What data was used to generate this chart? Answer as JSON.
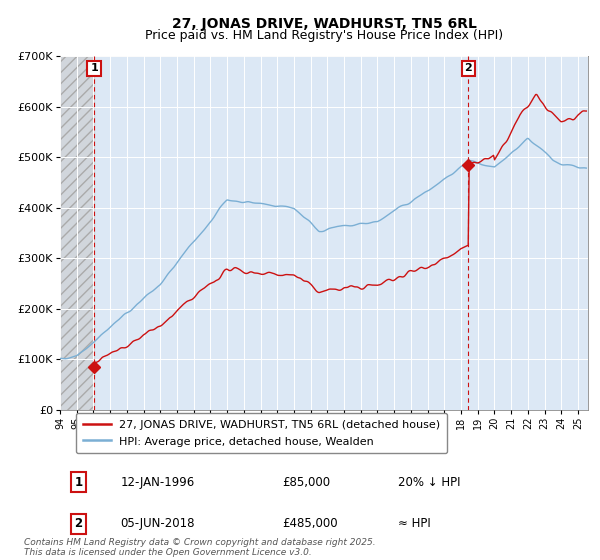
{
  "title": "27, JONAS DRIVE, WADHURST, TN5 6RL",
  "subtitle": "Price paid vs. HM Land Registry's House Price Index (HPI)",
  "legend_line1": "27, JONAS DRIVE, WADHURST, TN5 6RL (detached house)",
  "legend_line2": "HPI: Average price, detached house, Wealden",
  "annotation1_label": "1",
  "annotation1_date": "12-JAN-1996",
  "annotation1_price": "£85,000",
  "annotation1_note": "20% ↓ HPI",
  "annotation2_label": "2",
  "annotation2_date": "05-JUN-2018",
  "annotation2_price": "£485,000",
  "annotation2_note": "≈ HPI",
  "footer": "Contains HM Land Registry data © Crown copyright and database right 2025.\nThis data is licensed under the Open Government Licence v3.0.",
  "sale1_year": 1996.04,
  "sale1_price": 85000,
  "sale2_year": 2018.43,
  "sale2_price": 485000,
  "hpi_color": "#7bafd4",
  "price_color": "#cc1111",
  "sale_marker_color": "#cc1111",
  "vline_color": "#cc1111",
  "annotation_box_color": "#cc1111",
  "plot_bg_color": "#dce8f5",
  "ylim_max": 700000,
  "title_fontsize": 10,
  "subtitle_fontsize": 9,
  "axis_fontsize": 8,
  "legend_fontsize": 8,
  "table_fontsize": 8.5,
  "footer_fontsize": 6.5
}
